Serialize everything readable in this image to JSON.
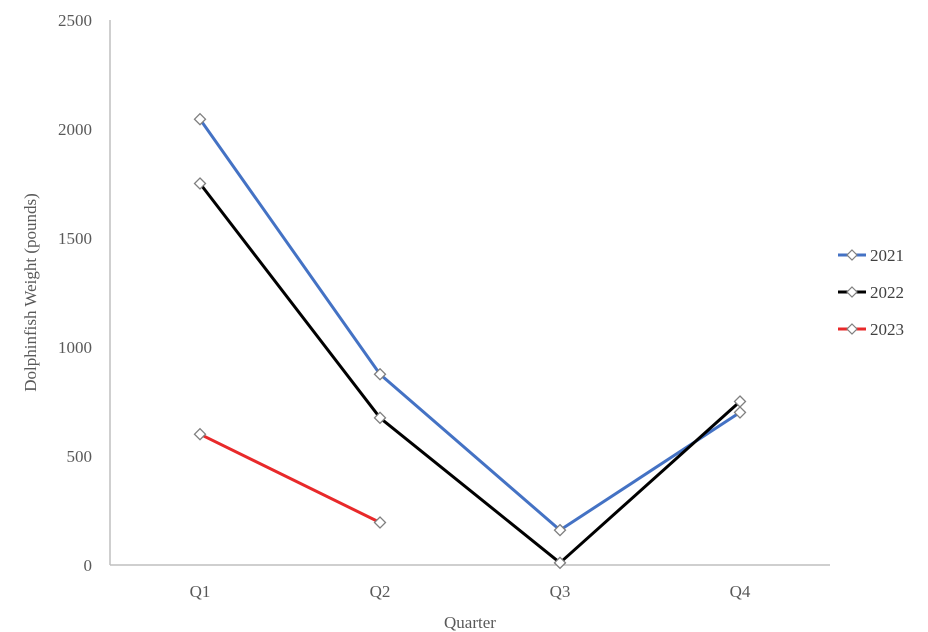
{
  "chart_data": {
    "type": "line",
    "title": "",
    "xlabel": "Quarter",
    "ylabel": "Dolphinfish Weight (pounds)",
    "categories": [
      "Q1",
      "Q2",
      "Q3",
      "Q4"
    ],
    "ylim": [
      0,
      2500
    ],
    "yticks": [
      0,
      500,
      1000,
      1500,
      2000,
      2500
    ],
    "grid": false,
    "legend_position": "right",
    "series": [
      {
        "name": "2021",
        "color": "#4472C4",
        "values": [
          2045,
          875,
          160,
          700
        ]
      },
      {
        "name": "2022",
        "color": "#000000",
        "values": [
          1750,
          675,
          10,
          750
        ]
      },
      {
        "name": "2023",
        "color": "#E8292A",
        "values": [
          600,
          195,
          null,
          null
        ]
      }
    ],
    "marker": "open-diamond"
  }
}
